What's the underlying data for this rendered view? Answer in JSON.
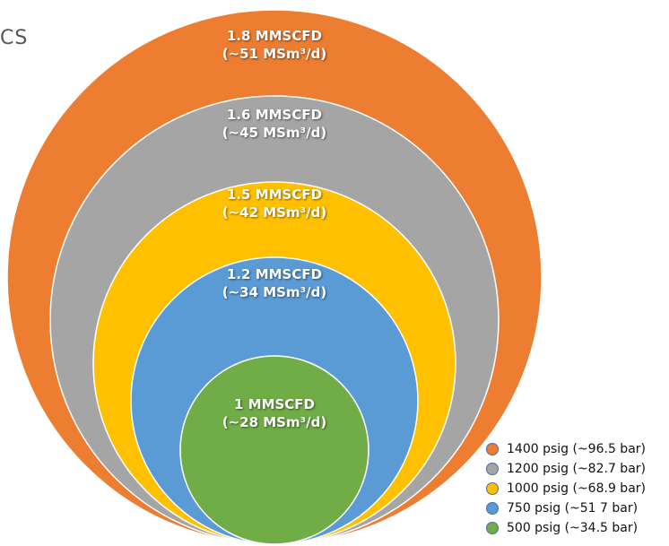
{
  "partial_title": "CS",
  "circles": [
    {
      "key": "c1400",
      "color": "#ED7D31",
      "line1": "1.8 MMSCFD",
      "line2": "(~51 MSm³/d)"
    },
    {
      "key": "c1200",
      "color": "#A5A5A5",
      "line1": "1.6 MMSCFD",
      "line2": "(~45 MSm³/d)"
    },
    {
      "key": "c1000",
      "color": "#FFC000",
      "line1": "1.5 MMSCFD",
      "line2": "(~42 MSm³/d)"
    },
    {
      "key": "c750",
      "color": "#5B9BD5",
      "line1": "1.2 MMSCFD",
      "line2": "(~34 MSm³/d)"
    },
    {
      "key": "c500",
      "color": "#70AD47",
      "line1": "1 MMSCFD",
      "line2": "(~28 MSm³/d)"
    }
  ],
  "legend": [
    {
      "color": "#ED7D31",
      "label": "1400 psig (~96.5 bar)"
    },
    {
      "color": "#A5A5A5",
      "label": "1200 psig (~82.7 bar)"
    },
    {
      "color": "#FFC000",
      "label": "1000 psig (~68.9 bar)"
    },
    {
      "color": "#5B9BD5",
      "label": "750 psig (~51 7 bar)"
    },
    {
      "color": "#70AD47",
      "label": "500 psig (~34.5 bar)"
    }
  ]
}
